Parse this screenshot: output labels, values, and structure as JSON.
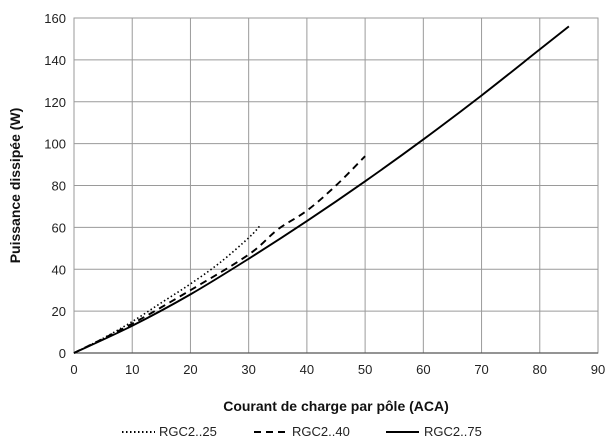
{
  "chart_data": {
    "type": "line",
    "xlabel": "Courant de charge par pôle (ACA)",
    "ylabel": "Puissance dissipée (W)",
    "xlim": [
      0,
      90
    ],
    "ylim": [
      0,
      160
    ],
    "x_ticks": [
      0,
      10,
      20,
      30,
      40,
      50,
      60,
      70,
      80,
      90
    ],
    "y_ticks": [
      0,
      20,
      40,
      60,
      80,
      100,
      120,
      140,
      160
    ],
    "grid": true,
    "legend_position": "bottom",
    "series": [
      {
        "name": "RGC2..25",
        "style": "dotted",
        "color": "#000000",
        "x": [
          0,
          5,
          10,
          15,
          20,
          25,
          30,
          32
        ],
        "y": [
          0,
          7,
          15,
          24,
          33,
          43,
          55,
          61
        ]
      },
      {
        "name": "RGC2..40",
        "style": "dashed",
        "color": "#000000",
        "x": [
          0,
          10,
          20,
          30,
          35,
          40,
          45,
          50
        ],
        "y": [
          0,
          14,
          30,
          47,
          59,
          68,
          80,
          94
        ]
      },
      {
        "name": "RGC2..75",
        "style": "solid",
        "color": "#000000",
        "x": [
          0,
          10,
          20,
          30,
          40,
          50,
          60,
          70,
          80,
          85
        ],
        "y": [
          0,
          13,
          28,
          45,
          63,
          82,
          102,
          123,
          145,
          156
        ]
      }
    ]
  }
}
